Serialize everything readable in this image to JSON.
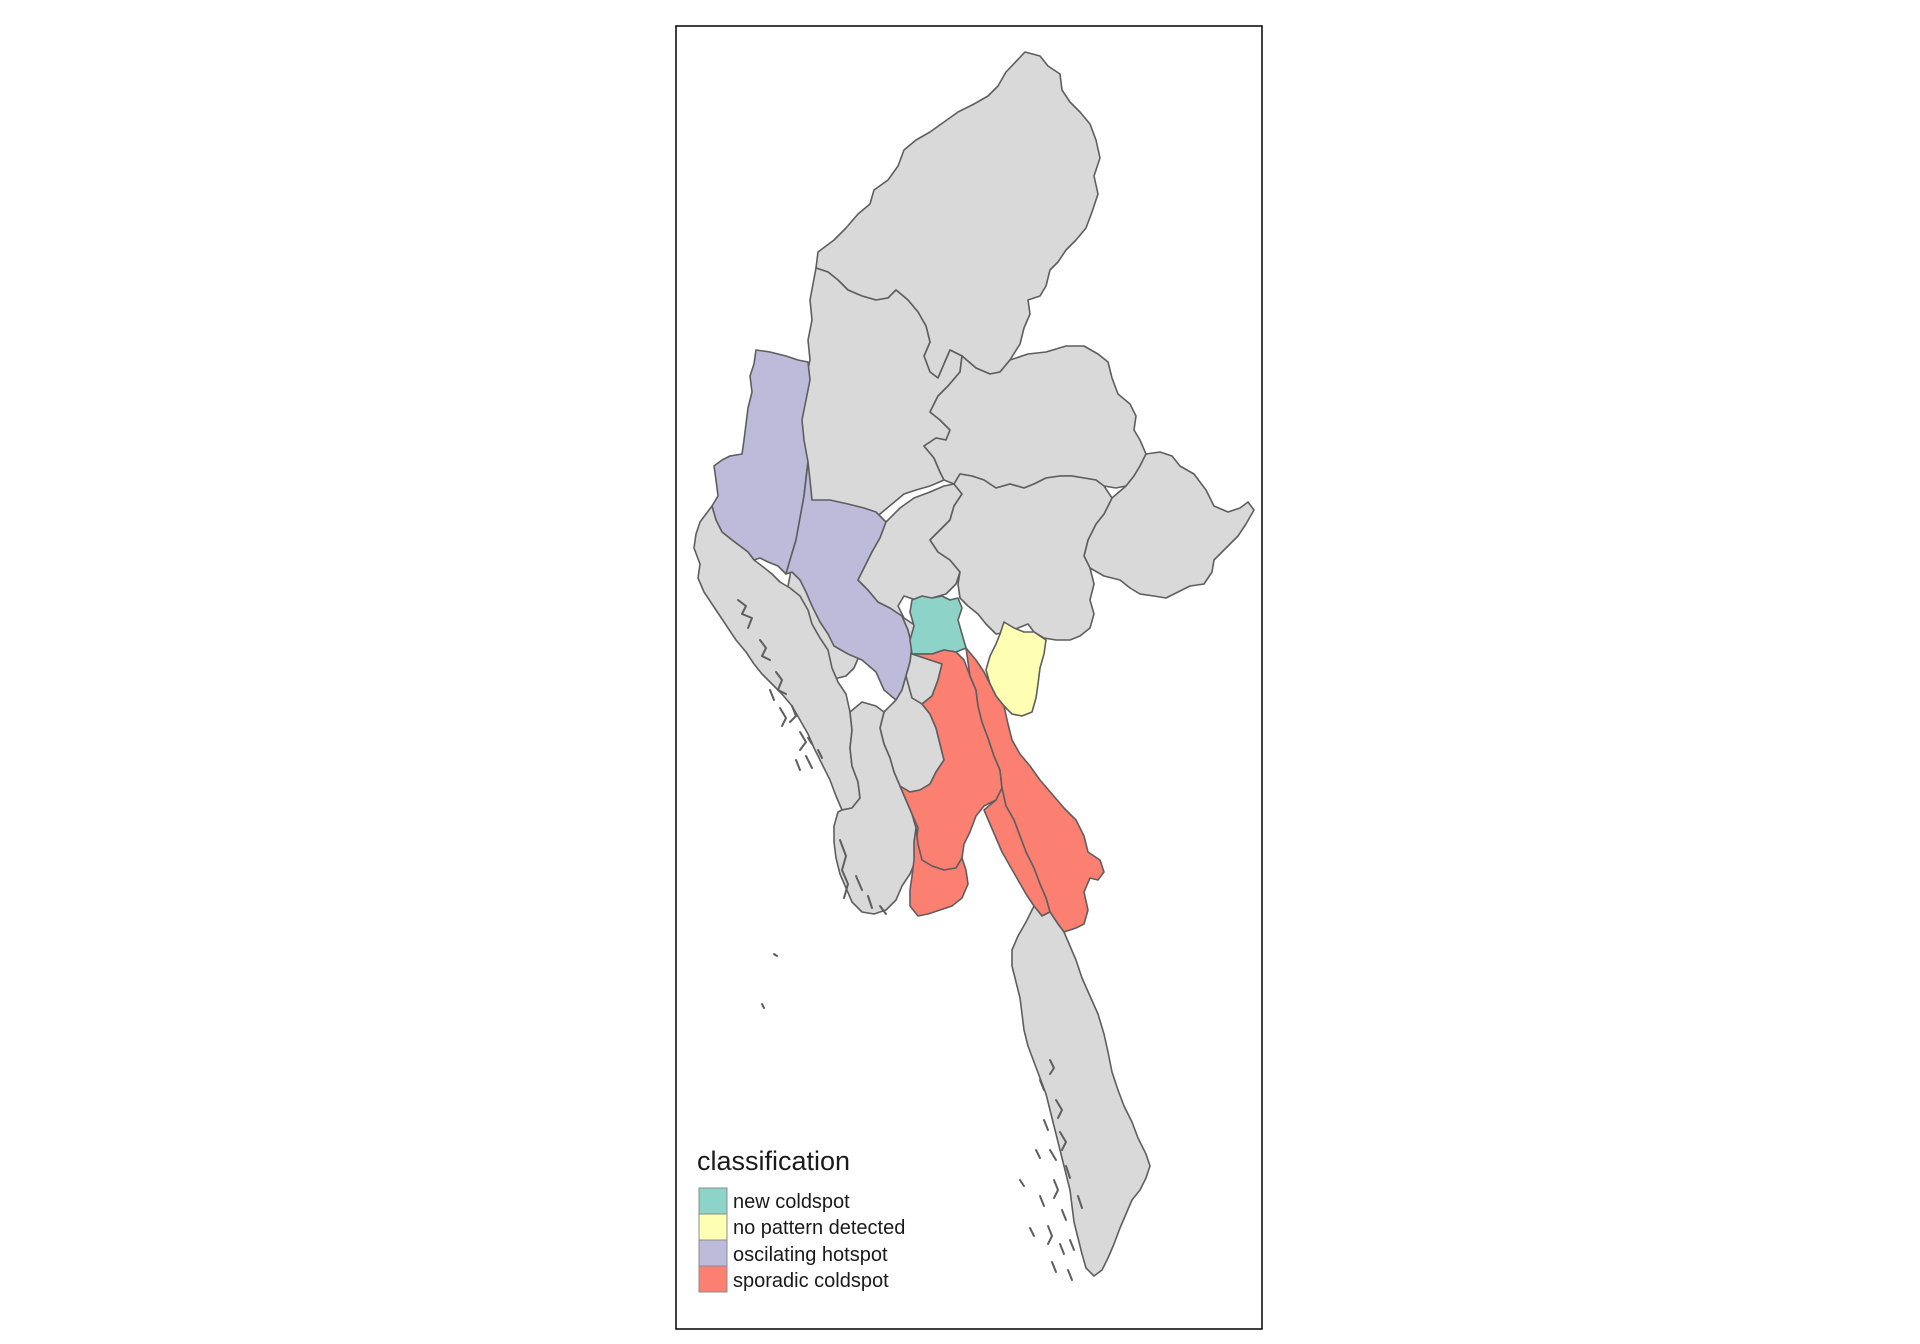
{
  "legend": {
    "title": "classification",
    "items": [
      {
        "label": "new coldspot",
        "color": "#8DD3C7"
      },
      {
        "label": "no pattern detected",
        "color": "#FFFFB3"
      },
      {
        "label": "oscilating hotspot",
        "color": "#BEBADA"
      },
      {
        "label": "sporadic coldspot",
        "color": "#FB8072"
      }
    ]
  },
  "colors": {
    "default_region": "#D9D9D9",
    "border": "#5E5E5E",
    "frame": "#000000"
  }
}
